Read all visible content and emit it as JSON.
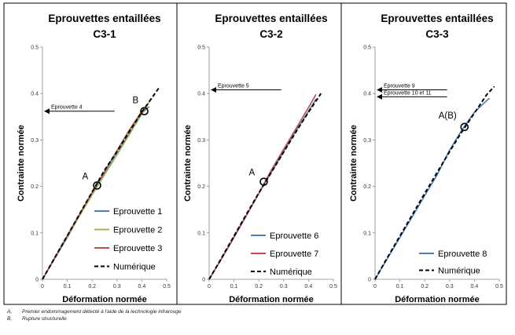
{
  "chart_data": [
    {
      "type": "line",
      "title_line1": "Eprouvettes entaillées",
      "title_line2": "C3-1",
      "xlabel": "Déformation normée",
      "ylabel": "Contrainte normée",
      "xlim": [
        0,
        0.5
      ],
      "ylim": [
        0,
        0.5
      ],
      "xticks": [
        "0",
        "0.1",
        "0.2",
        "0.3",
        "0.4",
        "0.5"
      ],
      "yticks": [
        "0",
        "0.1",
        "0.2",
        "0.3",
        "0.4",
        "0.5"
      ],
      "legend_position": "bottom-right",
      "series": [
        {
          "name": "Eprouvette 1",
          "color": "#4a7ebb",
          "dash": false,
          "x": [
            0,
            0.05,
            0.1,
            0.15,
            0.2,
            0.25,
            0.3,
            0.35,
            0.4,
            0.43
          ],
          "y": [
            0,
            0.045,
            0.09,
            0.138,
            0.183,
            0.227,
            0.27,
            0.315,
            0.358,
            0.372
          ]
        },
        {
          "name": "Eprouvette 2",
          "color": "#98b954",
          "dash": false,
          "x": [
            0,
            0.05,
            0.1,
            0.15,
            0.2,
            0.25,
            0.3,
            0.35,
            0.4,
            0.44
          ],
          "y": [
            0,
            0.046,
            0.092,
            0.137,
            0.182,
            0.225,
            0.268,
            0.312,
            0.356,
            0.39
          ]
        },
        {
          "name": "Eprouvette 3",
          "color": "#be4b48",
          "dash": false,
          "x": [
            0,
            0.05,
            0.1,
            0.15,
            0.2,
            0.25,
            0.3,
            0.35,
            0.4,
            0.42
          ],
          "y": [
            0,
            0.047,
            0.094,
            0.141,
            0.187,
            0.232,
            0.277,
            0.322,
            0.362,
            0.37
          ]
        },
        {
          "name": "Numérique",
          "color": "#000000",
          "dash": true,
          "x": [
            0,
            0.05,
            0.1,
            0.15,
            0.2,
            0.25,
            0.3,
            0.35,
            0.4,
            0.45,
            0.47
          ],
          "y": [
            0,
            0.047,
            0.094,
            0.141,
            0.188,
            0.235,
            0.275,
            0.318,
            0.36,
            0.398,
            0.413
          ]
        }
      ],
      "points": [
        {
          "label": "A",
          "x": 0.22,
          "y": 0.202
        },
        {
          "label": "B",
          "x": 0.41,
          "y": 0.362
        }
      ],
      "arrows": [
        {
          "label": "Eprouvette 4",
          "y": 0.362,
          "x_from": 0.29,
          "x_to": 0.0
        }
      ]
    },
    {
      "type": "line",
      "title_line1": "Eprouvettes entaillées",
      "title_line2": "C3-2",
      "xlabel": "Déformation normée",
      "ylabel": "Contrainte normée",
      "xlim": [
        0,
        0.5
      ],
      "ylim": [
        0,
        0.5
      ],
      "xticks": [
        "0",
        "0.1",
        "0.2",
        "0.3",
        "0.4",
        "0.5"
      ],
      "yticks": [
        "0",
        "0.1",
        "0.2",
        "0.3",
        "0.4",
        "0.5"
      ],
      "legend_position": "bottom-right",
      "series": [
        {
          "name": "Eprouvette 6",
          "color": "#4a7ebb",
          "dash": false,
          "x": [
            0,
            0.05,
            0.1,
            0.15,
            0.2,
            0.25,
            0.3,
            0.35,
            0.4,
            0.43
          ],
          "y": [
            0,
            0.045,
            0.092,
            0.138,
            0.185,
            0.23,
            0.275,
            0.32,
            0.362,
            0.388
          ]
        },
        {
          "name": "Eprouvette 7",
          "color": "#be4b48",
          "dash": false,
          "x": [
            0,
            0.05,
            0.1,
            0.15,
            0.2,
            0.25,
            0.3,
            0.35,
            0.4,
            0.43
          ],
          "y": [
            0,
            0.044,
            0.09,
            0.137,
            0.185,
            0.235,
            0.28,
            0.325,
            0.37,
            0.398
          ]
        },
        {
          "name": "Numérique",
          "color": "#000000",
          "dash": true,
          "x": [
            0,
            0.05,
            0.1,
            0.15,
            0.2,
            0.25,
            0.3,
            0.35,
            0.4,
            0.45
          ],
          "y": [
            0,
            0.046,
            0.093,
            0.14,
            0.186,
            0.23,
            0.274,
            0.318,
            0.36,
            0.4
          ]
        }
      ],
      "points": [
        {
          "label": "A",
          "x": 0.22,
          "y": 0.21
        }
      ],
      "arrows": [
        {
          "label": "Eprouvette 5",
          "y": 0.408,
          "x_from": 0.29,
          "x_to": 0.0
        }
      ]
    },
    {
      "type": "line",
      "title_line1": "Eprouvettes entaillées",
      "title_line2": "C3-3",
      "xlabel": "Déformation normée",
      "ylabel": "Contrainte normée",
      "xlim": [
        0,
        0.5
      ],
      "ylim": [
        0,
        0.5
      ],
      "xticks": [
        "0",
        "0.1",
        "0.2",
        "0.3",
        "0.4",
        "0.5"
      ],
      "yticks": [
        "0",
        "0.1",
        "0.2",
        "0.3",
        "0.4",
        "0.5"
      ],
      "legend_position": "bottom-right",
      "series": [
        {
          "name": "Eprouvette 8",
          "color": "#4a7ebb",
          "dash": false,
          "x": [
            0,
            0.05,
            0.1,
            0.15,
            0.2,
            0.25,
            0.3,
            0.35,
            0.4,
            0.45,
            0.46
          ],
          "y": [
            0,
            0.045,
            0.09,
            0.135,
            0.18,
            0.225,
            0.278,
            0.322,
            0.36,
            0.385,
            0.39
          ]
        },
        {
          "name": "Numérique",
          "color": "#000000",
          "dash": true,
          "x": [
            0,
            0.05,
            0.1,
            0.15,
            0.2,
            0.25,
            0.3,
            0.35,
            0.4,
            0.45,
            0.48
          ],
          "y": [
            0,
            0.047,
            0.093,
            0.139,
            0.185,
            0.23,
            0.275,
            0.318,
            0.358,
            0.398,
            0.415
          ]
        }
      ],
      "points": [
        {
          "label": "A(B)",
          "x": 0.36,
          "y": 0.328
        }
      ],
      "arrows": [
        {
          "label": "Eprouvette 9",
          "y": 0.408,
          "x_from": 0.29,
          "x_to": 0.0
        },
        {
          "label": "Eprouvette 10 et 11",
          "y": 0.393,
          "x_from": 0.29,
          "x_to": 0.0
        }
      ]
    }
  ],
  "footnotes": [
    {
      "key": "A,",
      "text": "Premier endommagement détecté à l'aide de la technologie infrarouge"
    },
    {
      "key": "B,",
      "text": "Rupture structurelle"
    }
  ]
}
